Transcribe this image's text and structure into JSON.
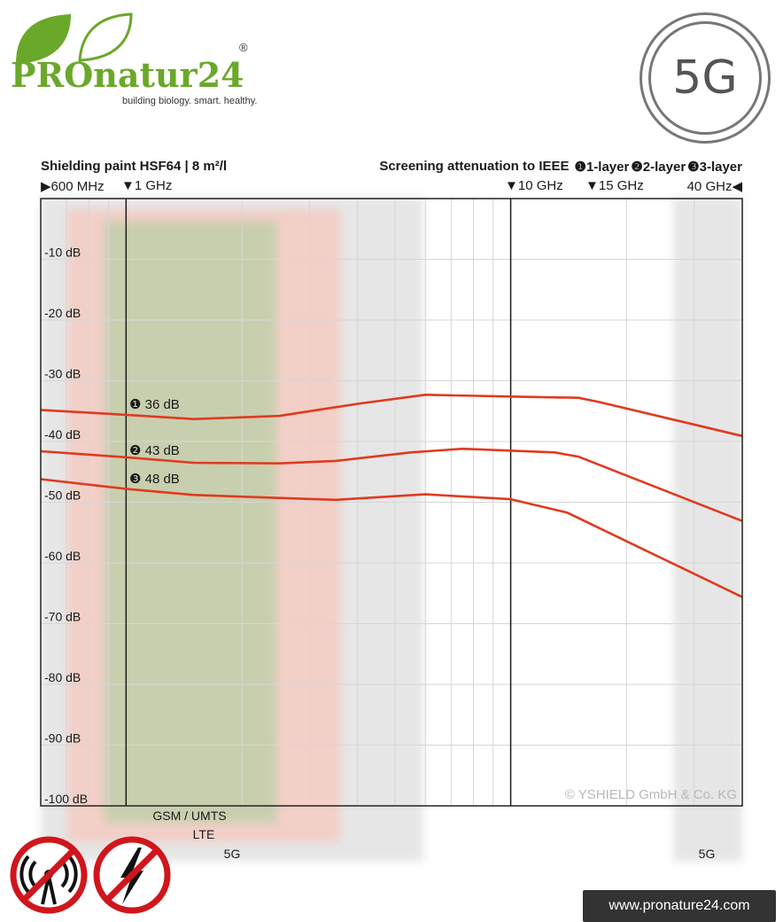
{
  "brand": {
    "name": "PROnatur24",
    "registered": "®",
    "tagline": "building biology. smart. healthy.",
    "badge": "5G",
    "url": "www.pronature24.com",
    "green": "#6aa82a"
  },
  "icons": [
    "no-radio-icon",
    "no-electric-icon"
  ],
  "chart_data": {
    "type": "line",
    "title": "Shielding paint HSF64 | 8 m²/l",
    "subtitle": "Screening attenuation to IEEE",
    "legend": [
      "❶1-layer",
      "❷2-layer",
      "❸3-layer"
    ],
    "freq_marks": [
      {
        "label": "600 MHz",
        "arrow": "▶",
        "arrow_side": "left"
      },
      {
        "label": "1 GHz",
        "arrow": "▼",
        "arrow_side": "left"
      },
      {
        "label": "10 GHz",
        "arrow": "▼",
        "arrow_side": "left"
      },
      {
        "label": "15 GHz",
        "arrow": "▼",
        "arrow_side": "left"
      },
      {
        "label": "40 GHz",
        "arrow": "◀",
        "arrow_side": "right"
      }
    ],
    "x_scale": "log",
    "xlim_ghz": [
      0.6,
      40
    ],
    "ylim": [
      -100,
      0
    ],
    "y_ticks": [
      -10,
      -20,
      -30,
      -40,
      -50,
      -60,
      -70,
      -80,
      -90,
      -100
    ],
    "y_tick_labels": [
      "-10 dB",
      "-20 dB",
      "-30 dB",
      "-40 dB",
      "-50 dB",
      "-60 dB",
      "-70 dB",
      "-80 dB",
      "-90 dB",
      "-100 dB"
    ],
    "grid": true,
    "vertical_markers_ghz": [
      1,
      10
    ],
    "series": [
      {
        "name": "1-layer",
        "label": "❶ 36 dB",
        "color": "#e03a1f",
        "x": [
          0.6,
          1.0,
          1.5,
          2.5,
          4.0,
          6.0,
          10.0,
          15.0,
          17.0,
          40.0
        ],
        "y": [
          -34.8,
          -35.6,
          -36.3,
          -35.8,
          -33.8,
          -32.3,
          -32.6,
          -32.8,
          -33.5,
          -39.1
        ]
      },
      {
        "name": "2-layer",
        "label": "❷ 43 dB",
        "color": "#e03a1f",
        "x": [
          0.6,
          1.0,
          1.5,
          2.5,
          3.5,
          5.5,
          7.5,
          13.0,
          15.0,
          40.0
        ],
        "y": [
          -41.6,
          -42.6,
          -43.5,
          -43.6,
          -43.2,
          -41.8,
          -41.2,
          -41.8,
          -42.5,
          -53.1
        ]
      },
      {
        "name": "3-layer",
        "label": "❸ 48 dB",
        "color": "#e03a1f",
        "x": [
          0.6,
          1.0,
          1.5,
          2.5,
          3.5,
          6.0,
          10.0,
          14.0,
          40.0
        ],
        "y": [
          -46.2,
          -47.8,
          -48.8,
          -49.3,
          -49.6,
          -48.7,
          -49.5,
          -51.7,
          -65.6
        ]
      }
    ],
    "bands": [
      {
        "label": "5G",
        "color": "#e6e6e6"
      },
      {
        "label": "LTE",
        "color": "#f2cfc7"
      },
      {
        "label": "GSM / UMTS",
        "color": "#c8cfae"
      },
      {
        "label": "5G",
        "color": "#e6e6e6"
      }
    ],
    "copyright": "© YSHIELD GmbH & Co. KG"
  }
}
